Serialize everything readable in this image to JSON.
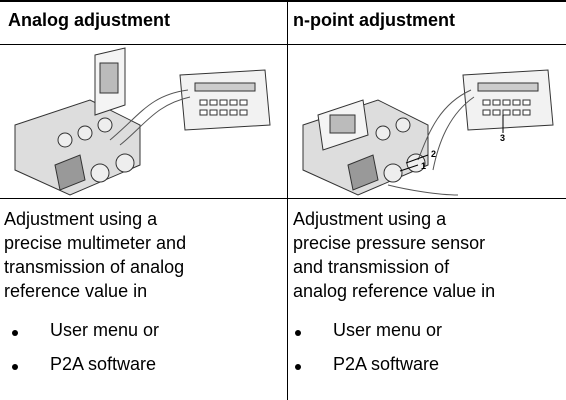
{
  "columns": [
    {
      "header": "Analog adjustment",
      "description": [
        "Adjustment using a",
        "precise multimeter and",
        "transmission of analog",
        "reference value in"
      ],
      "bullets": [
        "User menu or",
        "P2A software"
      ]
    },
    {
      "header": "n-point adjustment",
      "figure_callouts": [
        "1",
        "2",
        "3"
      ],
      "description": [
        "Adjustment using a",
        "precise pressure sensor",
        "and transmission of",
        "analog reference value in"
      ],
      "bullets": [
        "User menu or",
        "P2A software"
      ]
    }
  ]
}
